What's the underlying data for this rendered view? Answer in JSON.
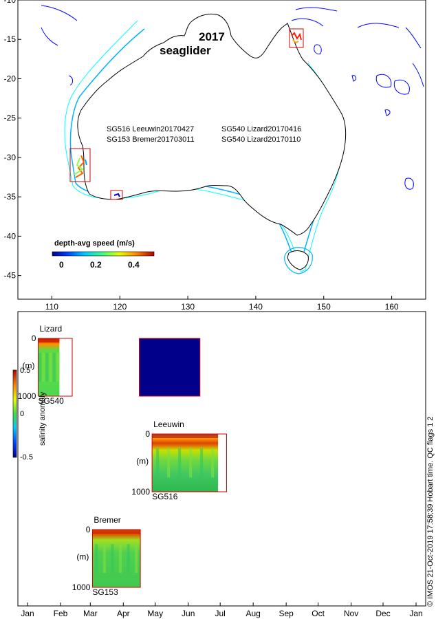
{
  "colors": {
    "coast": "#000000",
    "reef": "#0000ff",
    "isobath_200": "#00b4ff",
    "isobath_1000": "#00ffff",
    "box": "#d00000",
    "navy": "#00008b"
  },
  "chart_data": [
    {
      "type": "map",
      "title": "2017",
      "subtitle": "seaglider",
      "xlim": [
        105,
        165
      ],
      "ylim": [
        -48,
        -10
      ],
      "x_ticks": [
        110,
        120,
        130,
        140,
        150,
        160
      ],
      "y_ticks": [
        -10,
        -15,
        -20,
        -25,
        -30,
        -35,
        -40,
        -45
      ],
      "missions": [
        {
          "label": "SG516 Leeuwin20170427"
        },
        {
          "label": "SG540 Lizard20170416"
        },
        {
          "label": "SG153 Bremer201703011"
        },
        {
          "label": "SG540 Lizard20170110"
        }
      ],
      "colorbar": {
        "label": "depth-avg speed (m/s)",
        "ticks": [
          0,
          0.2,
          0.4
        ],
        "range": [
          0,
          0.5
        ]
      },
      "regions": [
        {
          "name": "Lizard",
          "lon": [
            145.6,
            146.9
          ],
          "lat": [
            -13.1,
            -15.6
          ]
        },
        {
          "name": "Leeuwin",
          "lon": [
            112.7,
            115.8
          ],
          "lat": [
            -28.7,
            -33.0
          ]
        },
        {
          "name": "Bremer",
          "lon": [
            118.6,
            120.4
          ],
          "lat": [
            -34.2,
            -35.5
          ]
        }
      ]
    },
    {
      "type": "heatmap",
      "xaxis_months": [
        "Jan",
        "Feb",
        "Mar",
        "Apr",
        "May",
        "Jun",
        "Jul",
        "Aug",
        "Sep",
        "Oct",
        "Nov",
        "Dec",
        "Jan"
      ],
      "xlim_day": [
        0,
        365
      ],
      "colorbar": {
        "label": "salinity anomaly",
        "ticks": [
          "0.5",
          "0",
          "-0.5"
        ],
        "range": [
          -0.5,
          0.5
        ]
      },
      "depth_range_m": [
        0,
        1000
      ],
      "depth_label": "(m)",
      "panels": [
        {
          "region": "Lizard",
          "glider": "SG540",
          "box_day": [
            10,
            42
          ],
          "data_day": [
            10,
            30
          ],
          "top_label": "0",
          "bottom_label": "1000",
          "pattern": "lizard1"
        },
        {
          "region": "",
          "glider": "",
          "box_day": [
            105,
            162
          ],
          "data_day": [
            105,
            162
          ],
          "top_label": "",
          "bottom_label": "",
          "pattern": "navy"
        },
        {
          "region": "Leeuwin",
          "glider": "SG516",
          "box_day": [
            117,
            187
          ],
          "data_day": [
            117,
            179
          ],
          "top_label": "0",
          "bottom_label": "1000",
          "pattern": "leeuwin"
        },
        {
          "region": "Bremer",
          "glider": "SG153",
          "box_day": [
            61,
            106
          ],
          "data_day": [
            61,
            106
          ],
          "top_label": "0",
          "bottom_label": "1000",
          "pattern": "bremer"
        }
      ]
    }
  ],
  "footer": {
    "credit": "© IMOS 21-Oct-2019 17:58:39 Hobart time. QC flags 1  2"
  }
}
